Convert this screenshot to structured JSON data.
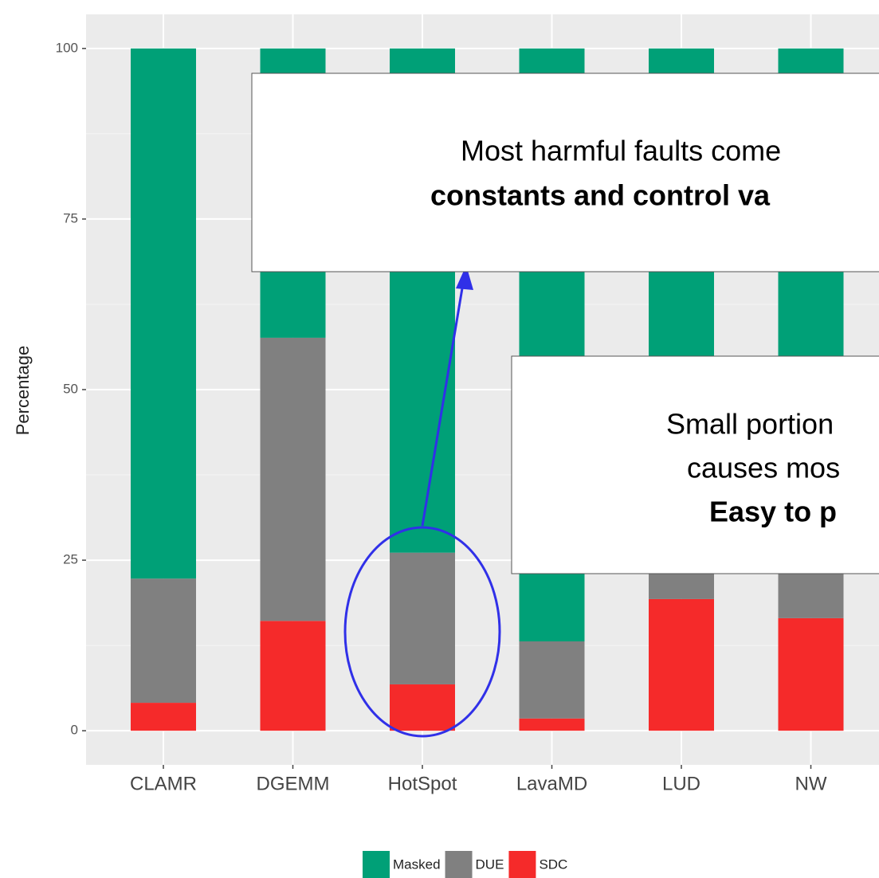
{
  "chart_data": {
    "type": "bar",
    "stacked": true,
    "y_label": "Percentage",
    "categories": [
      "CLAMR",
      "DGEMM",
      "HotSpot",
      "LavaMD",
      "LUD",
      "NW"
    ],
    "series": [
      {
        "name": "Masked",
        "color": "#00a077",
        "values": [
          77.7,
          42.4,
          73.9,
          86.9,
          75.7,
          75.5
        ]
      },
      {
        "name": "DUE",
        "color": "#808080",
        "values": [
          18.2,
          41.5,
          19.3,
          11.3,
          5,
          8
        ]
      },
      {
        "name": "SDC",
        "color": "#f52a2a",
        "values": [
          4.1,
          16.1,
          6.8,
          1.8,
          19.3,
          16.5
        ]
      }
    ],
    "ylim": [
      -5,
      105
    ],
    "yticks": [
      0,
      25,
      50,
      75,
      100
    ],
    "grid": true,
    "annotations": [
      {
        "lines": [
          "Most harmful faults come",
          "constants and control va"
        ],
        "bold": [
          false,
          true
        ]
      },
      {
        "lines": [
          "Small portion",
          "causes mos",
          "Easy to p"
        ],
        "bold": [
          false,
          false,
          true
        ]
      }
    ]
  }
}
